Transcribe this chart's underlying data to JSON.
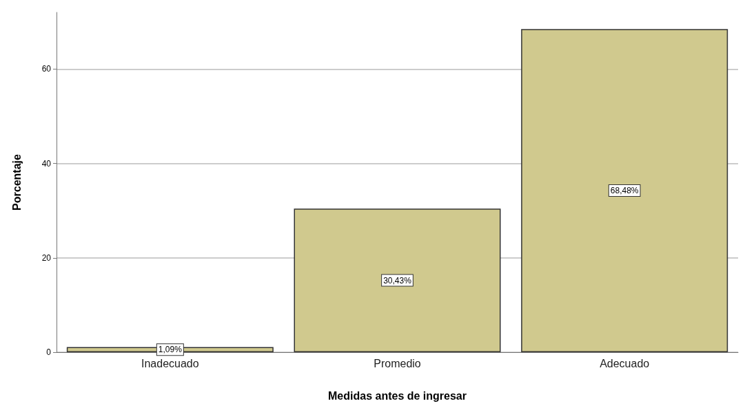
{
  "chart_data": {
    "type": "bar",
    "xlabel": "Medidas antes de ingresar",
    "ylabel": "Porcentaje",
    "categories": [
      "Inadecuado",
      "Promedio",
      "Adecuado"
    ],
    "values": [
      1.09,
      30.43,
      68.48
    ],
    "value_labels": [
      "1,09%",
      "30,43%",
      "68,48%"
    ],
    "color": "#d0c98e",
    "ylim": [
      0,
      72
    ],
    "yticks": [
      0,
      20,
      40,
      60
    ],
    "grid": "y"
  }
}
